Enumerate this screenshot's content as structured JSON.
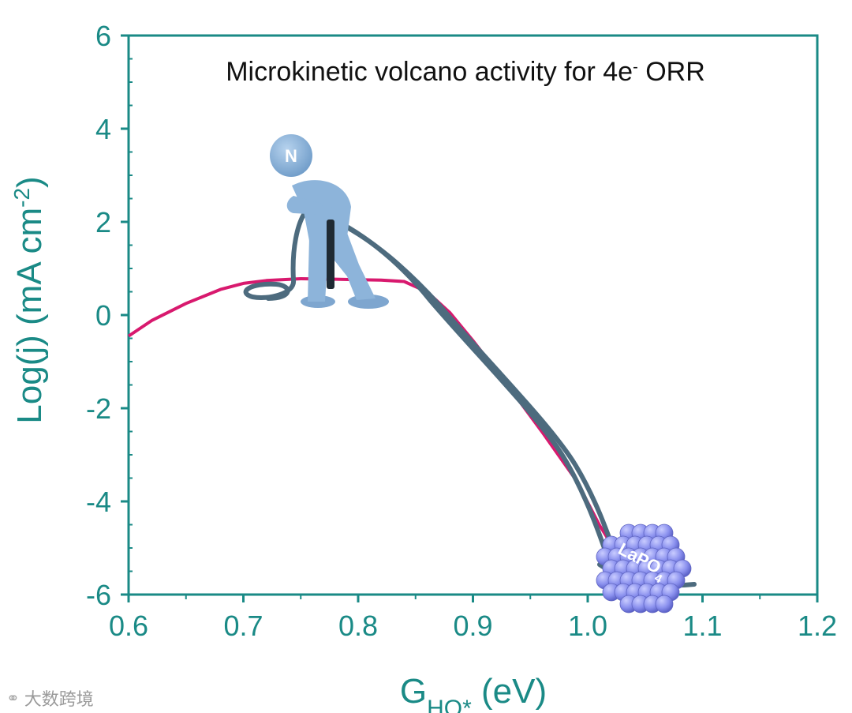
{
  "chart_data": {
    "type": "line",
    "title": "Microkinetic volcano activity for 4e- ORR",
    "title_main": "Microkinetic volcano activity for 4e",
    "title_sup": "-",
    "title_tail": " ORR",
    "xlabel": "G_HO* (eV)",
    "xlabel_base": "G",
    "xlabel_sub": "HO*",
    "xlabel_unit": " (eV)",
    "ylabel": "Log(j) (mA cm-2)",
    "ylabel_main": "Log(j) (mA cm",
    "ylabel_sup": "-2",
    "ylabel_tail": ")",
    "xlim": [
      0.6,
      1.2
    ],
    "ylim": [
      -6,
      6
    ],
    "xticks": [
      0.6,
      0.7,
      0.8,
      0.9,
      1.0,
      1.1,
      1.2
    ],
    "xtick_labels": [
      "0.6",
      "0.7",
      "0.8",
      "0.9",
      "1.0",
      "1.1",
      "1.2"
    ],
    "yticks": [
      6,
      4,
      2,
      0,
      -2,
      -4,
      -6
    ],
    "ytick_labels": [
      "6",
      "4",
      "2",
      "0",
      "-2",
      "-4",
      "-6"
    ],
    "grid": false,
    "series": [
      {
        "name": "volcano",
        "color": "#d8196e",
        "x": [
          0.6,
          0.62,
          0.65,
          0.68,
          0.7,
          0.72,
          0.75,
          0.78,
          0.8,
          0.82,
          0.84,
          0.86,
          0.88,
          0.9,
          0.93,
          0.96,
          0.99,
          1.01,
          1.03
        ],
        "y": [
          -0.45,
          -0.12,
          0.25,
          0.55,
          0.68,
          0.74,
          0.78,
          0.77,
          0.76,
          0.75,
          0.72,
          0.5,
          0.05,
          -0.55,
          -1.5,
          -2.5,
          -3.55,
          -4.5,
          -5.3
        ]
      }
    ],
    "annotations": {
      "figure_label": "N",
      "sphere_label_main": "LaPO",
      "sphere_label_sub": "4"
    },
    "colors": {
      "axis": "#1a8a86",
      "curve": "#d8196e",
      "figure": "#8db4da",
      "rope": "#4d6b7e",
      "sphere": "#7f86e8"
    }
  },
  "watermark": {
    "icon": "link-icon",
    "text": "大数跨境"
  }
}
